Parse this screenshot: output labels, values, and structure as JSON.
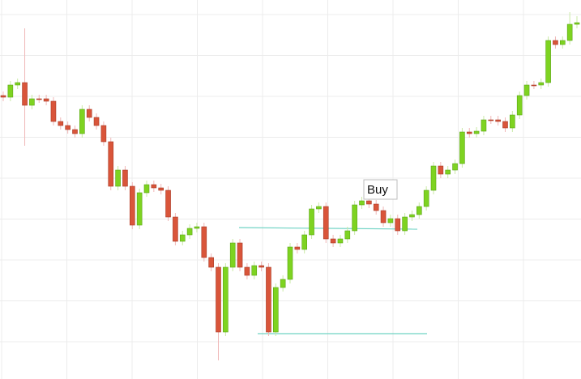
{
  "chart_data": {
    "type": "candlestick",
    "grid": true,
    "ylim": [
      0,
      468
    ],
    "up_color": "#7ed321",
    "down_color": "#d9553a",
    "annotation": "Buy",
    "open": [
      350,
      348,
      363,
      366,
      338,
      346,
      346,
      343,
      318,
      313,
      308,
      303,
      333,
      323,
      313,
      293,
      238,
      258,
      238,
      190,
      230,
      240,
      236,
      233,
      200,
      170,
      178,
      186,
      188,
      150,
      138,
      58,
      138,
      168,
      138,
      128,
      140,
      138,
      58,
      113,
      123,
      163,
      160,
      178,
      210,
      213,
      173,
      168,
      173,
      183,
      215,
      220,
      216,
      208,
      193,
      198,
      183,
      200,
      203,
      213,
      233,
      263,
      253,
      258,
      266,
      305,
      303,
      306,
      320,
      320,
      318,
      310,
      326,
      350,
      363,
      363,
      366,
      418,
      413,
      418,
      438
    ],
    "close": [
      348,
      363,
      366,
      338,
      346,
      346,
      343,
      318,
      313,
      308,
      303,
      333,
      323,
      313,
      293,
      238,
      258,
      238,
      190,
      230,
      240,
      236,
      233,
      200,
      170,
      178,
      186,
      188,
      150,
      138,
      58,
      138,
      168,
      138,
      128,
      140,
      138,
      58,
      113,
      123,
      163,
      160,
      178,
      210,
      213,
      173,
      168,
      173,
      183,
      215,
      220,
      216,
      208,
      193,
      198,
      183,
      200,
      203,
      213,
      233,
      263,
      253,
      258,
      266,
      305,
      303,
      306,
      320,
      320,
      318,
      310,
      326,
      350,
      363,
      363,
      366,
      418,
      413,
      418,
      438,
      440
    ],
    "high": [
      355,
      368,
      371,
      433,
      351,
      351,
      351,
      348,
      323,
      318,
      313,
      338,
      338,
      328,
      318,
      298,
      263,
      263,
      243,
      235,
      245,
      245,
      241,
      238,
      205,
      183,
      191,
      193,
      193,
      155,
      143,
      143,
      173,
      173,
      143,
      145,
      145,
      143,
      118,
      128,
      168,
      168,
      183,
      215,
      218,
      218,
      178,
      178,
      188,
      220,
      225,
      225,
      221,
      213,
      203,
      203,
      205,
      208,
      218,
      238,
      268,
      268,
      263,
      271,
      310,
      310,
      311,
      325,
      325,
      325,
      323,
      331,
      355,
      368,
      368,
      371,
      423,
      423,
      423,
      453,
      448
    ],
    "low": [
      343,
      343,
      358,
      288,
      333,
      341,
      338,
      313,
      308,
      303,
      298,
      298,
      318,
      308,
      288,
      233,
      233,
      233,
      185,
      185,
      225,
      231,
      228,
      195,
      165,
      165,
      173,
      181,
      145,
      133,
      23,
      53,
      133,
      133,
      123,
      123,
      133,
      53,
      53,
      108,
      118,
      155,
      155,
      173,
      205,
      168,
      163,
      163,
      168,
      178,
      210,
      211,
      203,
      188,
      188,
      178,
      178,
      195,
      198,
      208,
      228,
      248,
      248,
      253,
      261,
      298,
      298,
      301,
      315,
      313,
      305,
      305,
      321,
      345,
      358,
      358,
      361,
      408,
      408,
      413,
      433
    ]
  }
}
